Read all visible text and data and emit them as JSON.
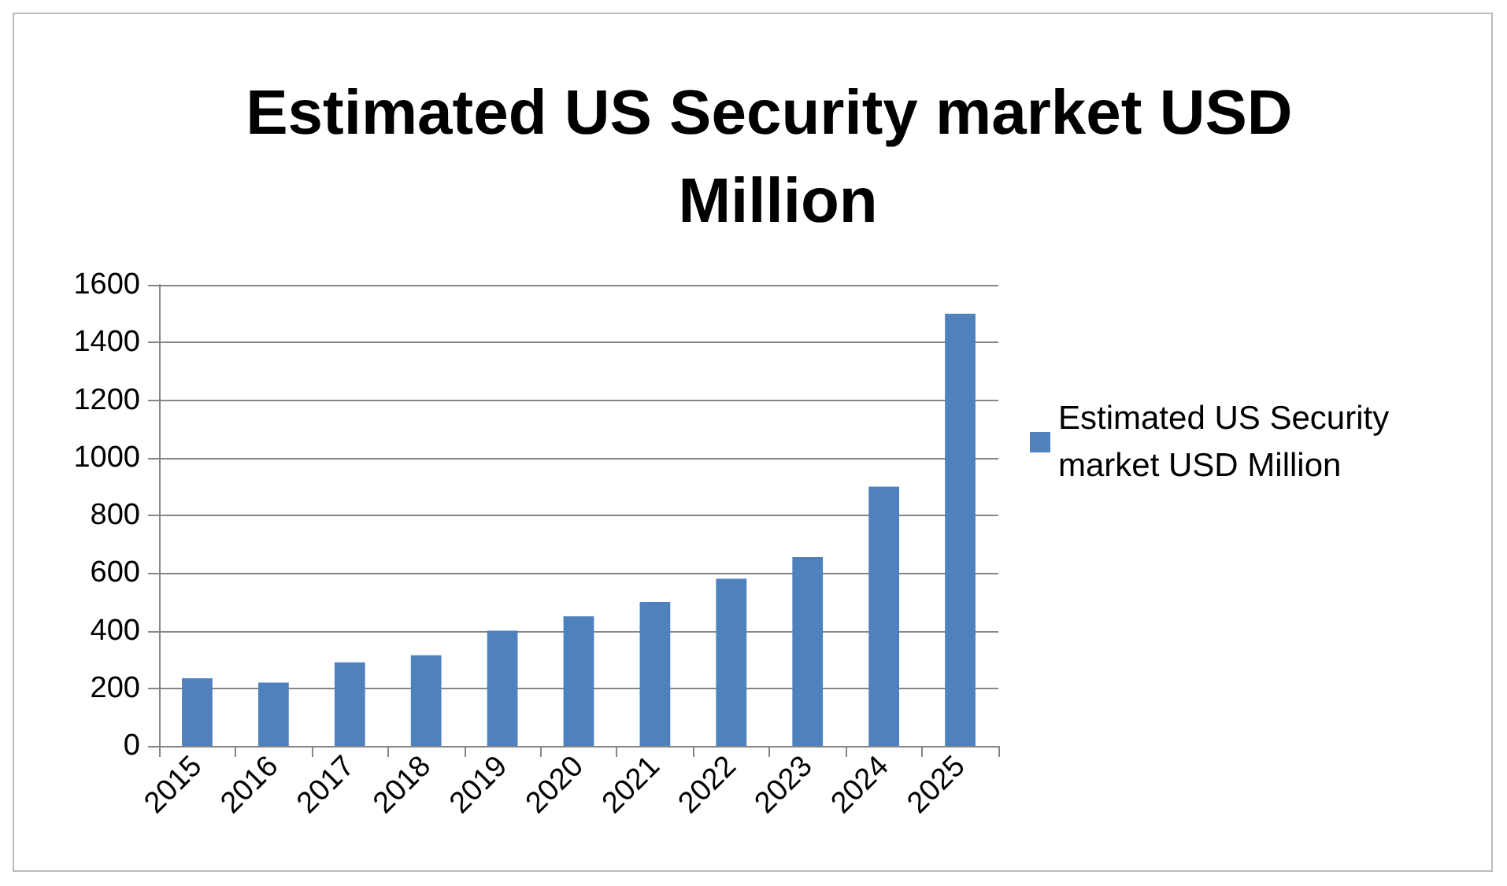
{
  "chart_data": {
    "type": "bar",
    "title": "Estimated US Security market USD Million",
    "categories": [
      "2015",
      "2016",
      "2017",
      "2018",
      "2019",
      "2020",
      "2021",
      "2022",
      "2023",
      "2024",
      "2025"
    ],
    "series": [
      {
        "name": "Estimated US Security market USD Million",
        "color": "#4f81bd",
        "values": [
          235,
          220,
          290,
          315,
          400,
          450,
          500,
          580,
          655,
          900,
          1500
        ]
      }
    ],
    "ylim": [
      0,
      1600
    ],
    "yticks": [
      0,
      200,
      400,
      600,
      800,
      1000,
      1200,
      1400,
      1600
    ],
    "grid": "y",
    "legend": "right"
  }
}
